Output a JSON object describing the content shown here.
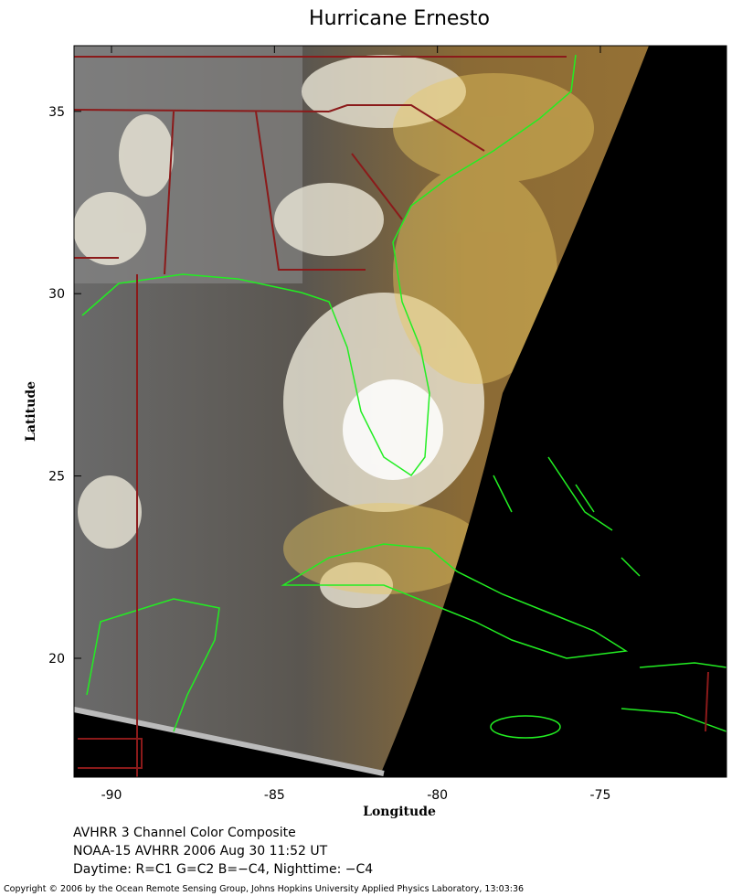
{
  "title": "Hurricane Ernesto",
  "x_axis": {
    "label": "Longitude",
    "lim": [
      -91.15,
      -71.13
    ],
    "ticks": [
      -90,
      -85,
      -80,
      -75
    ]
  },
  "y_axis": {
    "label": "Latitude",
    "lim": [
      16.74,
      36.8
    ],
    "ticks": [
      20,
      25,
      30,
      35
    ]
  },
  "caption": [
    "AVHRR 3 Channel Color Composite",
    "NOAA-15 AVHRR 2006 Aug 30 11:52 UT",
    "Daytime: R=C1 G=C2 B=−C4, Nighttime: −C4"
  ],
  "copyright": "Copyright © 2006 by the Ocean Remote Sensing Group, Johns Hopkins University Applied Physics Laboratory, 13:03:36"
}
